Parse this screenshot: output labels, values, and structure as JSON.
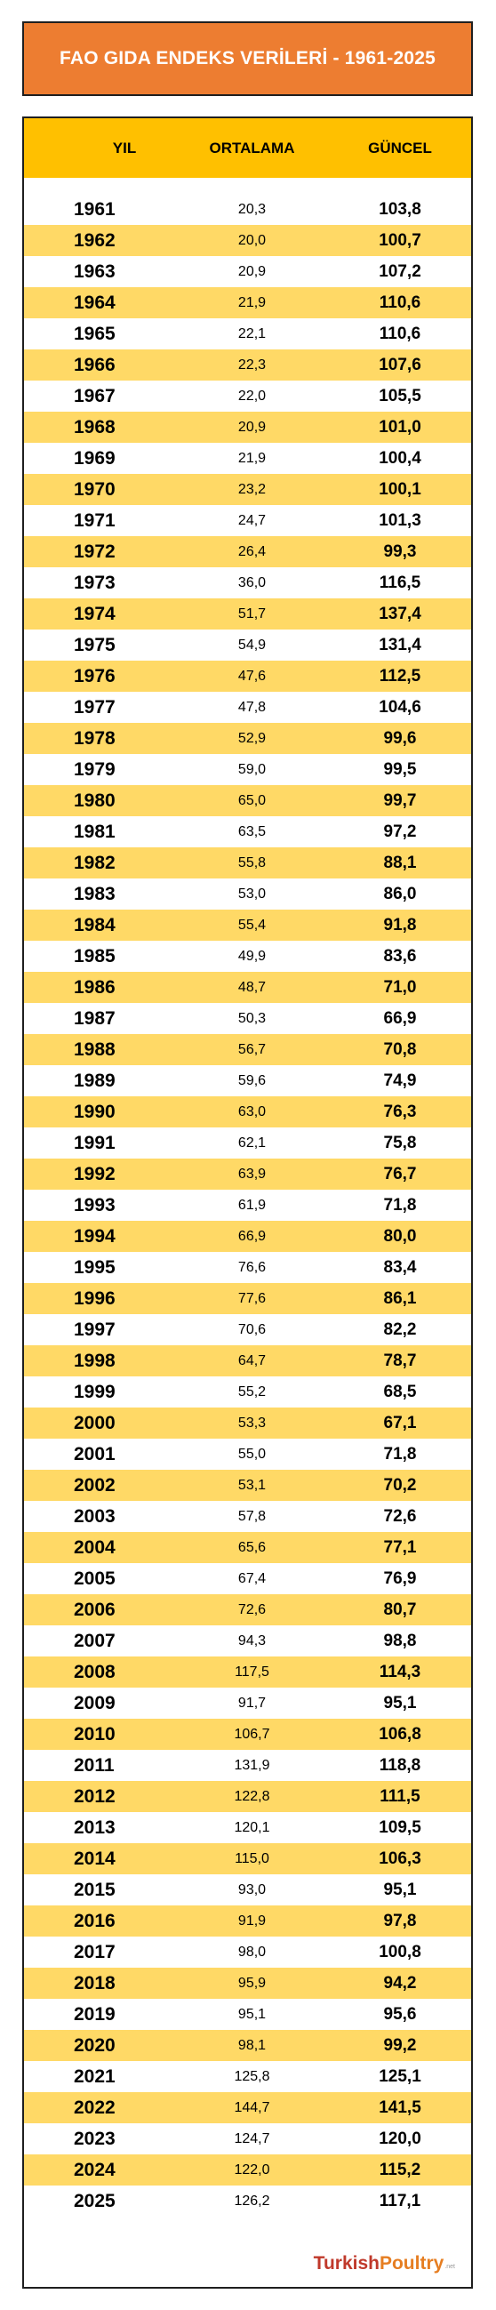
{
  "title": "FAO GIDA ENDEKS VERİLERİ - 1961-2025",
  "headers": {
    "year": "YIL",
    "average": "ORTALAMA",
    "current": "GÜNCEL"
  },
  "rows": [
    {
      "year": "1961",
      "average": "20,3",
      "current": "103,8"
    },
    {
      "year": "1962",
      "average": "20,0",
      "current": "100,7"
    },
    {
      "year": "1963",
      "average": "20,9",
      "current": "107,2"
    },
    {
      "year": "1964",
      "average": "21,9",
      "current": "110,6"
    },
    {
      "year": "1965",
      "average": "22,1",
      "current": "110,6"
    },
    {
      "year": "1966",
      "average": "22,3",
      "current": "107,6"
    },
    {
      "year": "1967",
      "average": "22,0",
      "current": "105,5"
    },
    {
      "year": "1968",
      "average": "20,9",
      "current": "101,0"
    },
    {
      "year": "1969",
      "average": "21,9",
      "current": "100,4"
    },
    {
      "year": "1970",
      "average": "23,2",
      "current": "100,1"
    },
    {
      "year": "1971",
      "average": "24,7",
      "current": "101,3"
    },
    {
      "year": "1972",
      "average": "26,4",
      "current": "99,3"
    },
    {
      "year": "1973",
      "average": "36,0",
      "current": "116,5"
    },
    {
      "year": "1974",
      "average": "51,7",
      "current": "137,4"
    },
    {
      "year": "1975",
      "average": "54,9",
      "current": "131,4"
    },
    {
      "year": "1976",
      "average": "47,6",
      "current": "112,5"
    },
    {
      "year": "1977",
      "average": "47,8",
      "current": "104,6"
    },
    {
      "year": "1978",
      "average": "52,9",
      "current": "99,6"
    },
    {
      "year": "1979",
      "average": "59,0",
      "current": "99,5"
    },
    {
      "year": "1980",
      "average": "65,0",
      "current": "99,7"
    },
    {
      "year": "1981",
      "average": "63,5",
      "current": "97,2"
    },
    {
      "year": "1982",
      "average": "55,8",
      "current": "88,1"
    },
    {
      "year": "1983",
      "average": "53,0",
      "current": "86,0"
    },
    {
      "year": "1984",
      "average": "55,4",
      "current": "91,8"
    },
    {
      "year": "1985",
      "average": "49,9",
      "current": "83,6"
    },
    {
      "year": "1986",
      "average": "48,7",
      "current": "71,0"
    },
    {
      "year": "1987",
      "average": "50,3",
      "current": "66,9"
    },
    {
      "year": "1988",
      "average": "56,7",
      "current": "70,8"
    },
    {
      "year": "1989",
      "average": "59,6",
      "current": "74,9"
    },
    {
      "year": "1990",
      "average": "63,0",
      "current": "76,3"
    },
    {
      "year": "1991",
      "average": "62,1",
      "current": "75,8"
    },
    {
      "year": "1992",
      "average": "63,9",
      "current": "76,7"
    },
    {
      "year": "1993",
      "average": "61,9",
      "current": "71,8"
    },
    {
      "year": "1994",
      "average": "66,9",
      "current": "80,0"
    },
    {
      "year": "1995",
      "average": "76,6",
      "current": "83,4"
    },
    {
      "year": "1996",
      "average": "77,6",
      "current": "86,1"
    },
    {
      "year": "1997",
      "average": "70,6",
      "current": "82,2"
    },
    {
      "year": "1998",
      "average": "64,7",
      "current": "78,7"
    },
    {
      "year": "1999",
      "average": "55,2",
      "current": "68,5"
    },
    {
      "year": "2000",
      "average": "53,3",
      "current": "67,1"
    },
    {
      "year": "2001",
      "average": "55,0",
      "current": "71,8"
    },
    {
      "year": "2002",
      "average": "53,1",
      "current": "70,2"
    },
    {
      "year": "2003",
      "average": "57,8",
      "current": "72,6"
    },
    {
      "year": "2004",
      "average": "65,6",
      "current": "77,1"
    },
    {
      "year": "2005",
      "average": "67,4",
      "current": "76,9"
    },
    {
      "year": "2006",
      "average": "72,6",
      "current": "80,7"
    },
    {
      "year": "2007",
      "average": "94,3",
      "current": "98,8"
    },
    {
      "year": "2008",
      "average": "117,5",
      "current": "114,3"
    },
    {
      "year": "2009",
      "average": "91,7",
      "current": "95,1"
    },
    {
      "year": "2010",
      "average": "106,7",
      "current": "106,8"
    },
    {
      "year": "2011",
      "average": "131,9",
      "current": "118,8"
    },
    {
      "year": "2012",
      "average": "122,8",
      "current": "111,5"
    },
    {
      "year": "2013",
      "average": "120,1",
      "current": "109,5"
    },
    {
      "year": "2014",
      "average": "115,0",
      "current": "106,3"
    },
    {
      "year": "2015",
      "average": "93,0",
      "current": "95,1"
    },
    {
      "year": "2016",
      "average": "91,9",
      "current": "97,8"
    },
    {
      "year": "2017",
      "average": "98,0",
      "current": "100,8"
    },
    {
      "year": "2018",
      "average": "95,9",
      "current": "94,2"
    },
    {
      "year": "2019",
      "average": "95,1",
      "current": "95,6"
    },
    {
      "year": "2020",
      "average": "98,1",
      "current": "99,2"
    },
    {
      "year": "2021",
      "average": "125,8",
      "current": "125,1"
    },
    {
      "year": "2022",
      "average": "144,7",
      "current": "141,5"
    },
    {
      "year": "2023",
      "average": "124,7",
      "current": "120,0"
    },
    {
      "year": "2024",
      "average": "122,0",
      "current": "115,2"
    },
    {
      "year": "2025",
      "average": "126,2",
      "current": "117,1"
    }
  ],
  "logo": {
    "part1": "Turkish ",
    "part2": "Poultry",
    "tld": ".net"
  },
  "colors": {
    "title_bg": "#ED7D31",
    "header_bg": "#FFC000",
    "alt_row": "#FFD966",
    "logo_primary": "#C0392B",
    "logo_secondary": "#E67E22"
  }
}
